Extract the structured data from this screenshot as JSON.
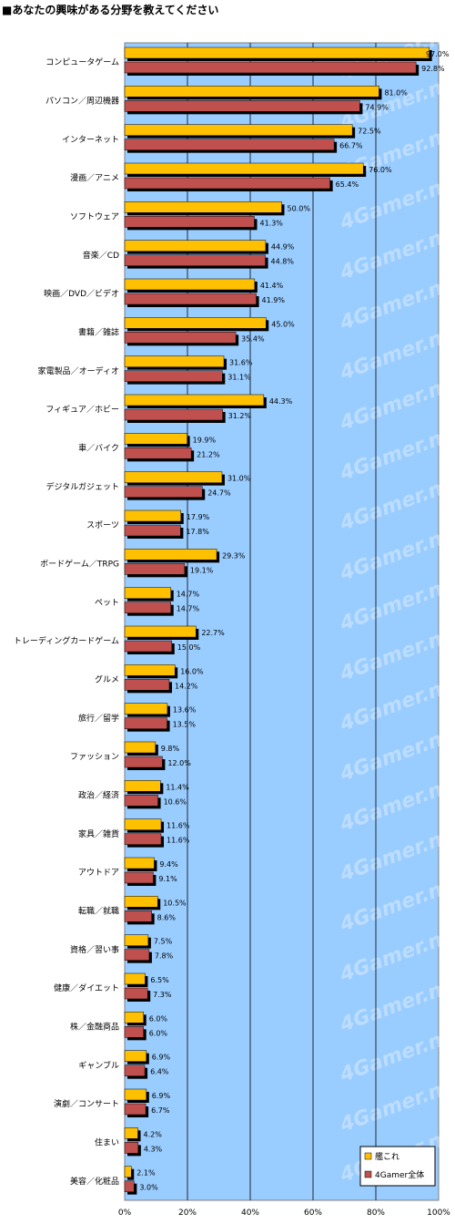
{
  "chart_data": {
    "type": "bar",
    "orientation": "horizontal",
    "title": "■あなたの興味がある分野を教えてください",
    "categories": [
      "コンピュータゲーム",
      "パソコン／周辺機器",
      "インターネット",
      "漫画／アニメ",
      "ソフトウェア",
      "音楽／CD",
      "映画／DVD／ビデオ",
      "書籍／雑誌",
      "家電製品／オーディオ",
      "フィギュア／ホビー",
      "車／バイク",
      "デジタルガジェット",
      "スポーツ",
      "ボードゲーム／TRPG",
      "ペット",
      "トレーディングカードゲーム",
      "グルメ",
      "旅行／留学",
      "ファッション",
      "政治／経済",
      "家具／雑貨",
      "アウトドア",
      "転職／就職",
      "資格／習い事",
      "健康／ダイエット",
      "株／金融商品",
      "ギャンブル",
      "演劇／コンサート",
      "住まい",
      "美容／化粧品"
    ],
    "series": [
      {
        "name": "艦これ",
        "color": "#FFC000",
        "values": [
          97.0,
          81.0,
          72.5,
          76.0,
          50.0,
          44.9,
          41.4,
          45.0,
          31.6,
          44.3,
          19.9,
          31.0,
          17.9,
          29.3,
          14.7,
          22.7,
          16.0,
          13.6,
          9.8,
          11.4,
          11.6,
          9.4,
          10.5,
          7.5,
          6.5,
          6.0,
          6.9,
          6.9,
          4.2,
          2.1
        ]
      },
      {
        "name": "4Gamer全体",
        "color": "#C0504D",
        "values": [
          92.8,
          74.9,
          66.7,
          65.4,
          41.3,
          44.8,
          41.9,
          35.4,
          31.1,
          31.2,
          21.2,
          24.7,
          17.8,
          19.1,
          14.7,
          15.0,
          14.2,
          13.5,
          12.0,
          10.6,
          11.6,
          9.1,
          8.6,
          7.8,
          7.3,
          6.0,
          6.4,
          6.7,
          4.3,
          3.0
        ]
      }
    ],
    "value_labels": [
      [
        "97.0%",
        "92.8%"
      ],
      [
        "81.0%",
        "74.9%"
      ],
      [
        "72.5%",
        "66.7%"
      ],
      [
        "76.0%",
        "65.4%"
      ],
      [
        "50.0%",
        "41.3%"
      ],
      [
        "44.9%",
        "44.8%"
      ],
      [
        "41.4%",
        "41.9%"
      ],
      [
        "45.0%",
        "35.4%"
      ],
      [
        "31.6%",
        "31.1%"
      ],
      [
        "44.3%",
        "31.2%"
      ],
      [
        "19.9%",
        "21.2%"
      ],
      [
        "31.0%",
        "24.7%"
      ],
      [
        "17.9%",
        "17.8%"
      ],
      [
        "29.3%",
        "19.1%"
      ],
      [
        "14.7%",
        "14.7%"
      ],
      [
        "22.7%",
        "15.0%"
      ],
      [
        "16.0%",
        "14.2%"
      ],
      [
        "13.6%",
        "13.5%"
      ],
      [
        "9.8%",
        "12.0%"
      ],
      [
        "11.4%",
        "10.6%"
      ],
      [
        "11.6%",
        "11.6%"
      ],
      [
        "9.4%",
        "9.1%"
      ],
      [
        "10.5%",
        "8.6%"
      ],
      [
        "7.5%",
        "7.8%"
      ],
      [
        "6.5%",
        "7.3%"
      ],
      [
        "6.0%",
        "6.0%"
      ],
      [
        "6.9%",
        "6.4%"
      ],
      [
        "6.9%",
        "6.7%"
      ],
      [
        "4.2%",
        "4.3%"
      ],
      [
        "2.1%",
        "3.0%"
      ]
    ],
    "xlim": [
      0,
      100
    ],
    "xticks": [
      "0%",
      "20%",
      "40%",
      "60%",
      "80%",
      "100%"
    ],
    "grid": true,
    "legend_position": "bottom-right",
    "plot_background": "#99CCFF",
    "watermark": "4Gamer.net"
  }
}
